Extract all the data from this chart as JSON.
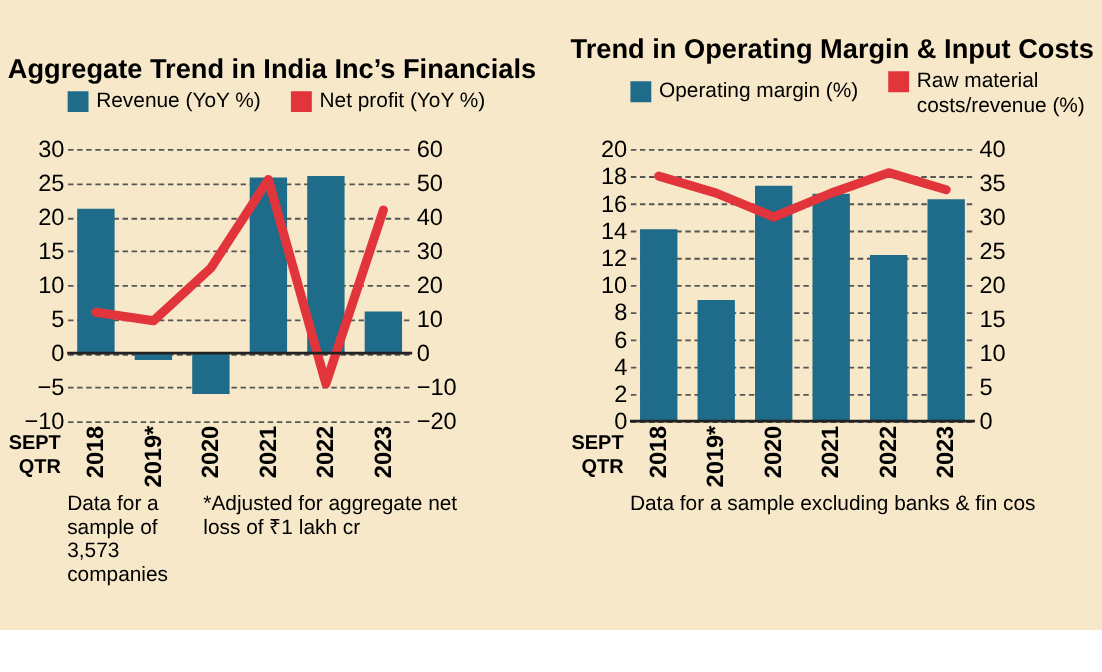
{
  "chart_data": [
    {
      "type": "bar",
      "title": "Aggregate Trend in India Inc’s Financials",
      "xlabel": "SEPT QTR",
      "categories": [
        "2018",
        "2019*",
        "2020",
        "2021",
        "2022",
        "2023"
      ],
      "series": [
        {
          "name": "Revenue (YoY %)",
          "color": "#1f6b8a",
          "values": [
            21.2,
            -1,
            -6,
            25.8,
            26,
            6.1
          ]
        },
        {
          "name": "Net profit (YoY %)",
          "color": "#e2353b",
          "type": "line",
          "axis": "y2",
          "values": [
            12,
            9.5,
            25,
            51,
            -9,
            42
          ]
        }
      ],
      "ylim": [
        -10,
        30
      ],
      "yticks": [
        -10,
        -5,
        0,
        5,
        10,
        15,
        20,
        25,
        30
      ],
      "y2lim": [
        -20,
        60
      ],
      "y2ticks": [
        -20,
        -10,
        0,
        10,
        20,
        30,
        40,
        50,
        60
      ],
      "grid": "y",
      "legend": "top",
      "annotations": [
        "Data for a sample of 3,573 companies",
        "*Adjusted for aggregate net loss of ₹1 lakh cr"
      ]
    },
    {
      "type": "bar",
      "title": "Trend in Operating Margin & Input Costs",
      "xlabel": "SEPT QTR",
      "categories": [
        "2018",
        "2019*",
        "2020",
        "2021",
        "2022",
        "2023"
      ],
      "series": [
        {
          "name": "Operating margin (%)",
          "color": "#1f6b8a",
          "values": [
            14.1,
            8.9,
            17.3,
            16.7,
            12.2,
            16.3
          ]
        },
        {
          "name": "Raw material costs/revenue (%)",
          "color": "#e2353b",
          "type": "line",
          "axis": "y2",
          "values": [
            36,
            33.5,
            30,
            33.5,
            36.5,
            34
          ]
        }
      ],
      "ylim": [
        0,
        20
      ],
      "yticks": [
        0,
        2,
        4,
        6,
        8,
        10,
        12,
        14,
        16,
        18,
        20
      ],
      "y2lim": [
        0,
        40
      ],
      "y2ticks": [
        0,
        5,
        10,
        15,
        20,
        25,
        30,
        35,
        40
      ],
      "grid": "y",
      "legend": "top",
      "annotations": [
        "Data for a sample excluding banks & fin cos"
      ]
    }
  ]
}
